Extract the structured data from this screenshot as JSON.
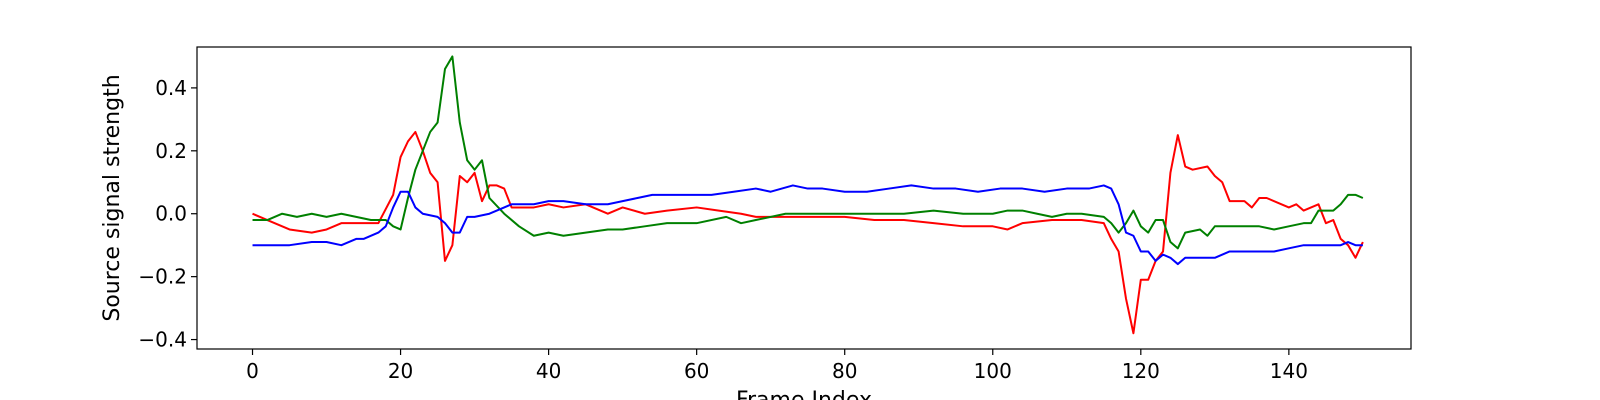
{
  "chart_data": {
    "type": "line",
    "title": "",
    "xlabel": "Frame Index",
    "ylabel": "Source signal strength",
    "xlim": [
      -7.5,
      156.5
    ],
    "ylim": [
      -0.43,
      0.53
    ],
    "xticks": [
      0,
      20,
      40,
      60,
      80,
      100,
      120,
      140
    ],
    "xtick_labels": [
      "0",
      "20",
      "40",
      "60",
      "80",
      "100",
      "120",
      "140"
    ],
    "yticks": [
      -0.4,
      -0.2,
      0.0,
      0.2,
      0.4
    ],
    "ytick_labels": [
      "−0.4",
      "−0.2",
      "0.0",
      "0.2",
      "0.4"
    ],
    "grid": false,
    "series": [
      {
        "color": "#ff0000",
        "keypoints": [
          [
            0,
            0.0
          ],
          [
            2,
            -0.02
          ],
          [
            5,
            -0.05
          ],
          [
            8,
            -0.06
          ],
          [
            10,
            -0.05
          ],
          [
            12,
            -0.03
          ],
          [
            15,
            -0.03
          ],
          [
            17,
            -0.03
          ],
          [
            19,
            0.06
          ],
          [
            20,
            0.18
          ],
          [
            21,
            0.23
          ],
          [
            22,
            0.26
          ],
          [
            23,
            0.2
          ],
          [
            24,
            0.13
          ],
          [
            25,
            0.1
          ],
          [
            26,
            -0.15
          ],
          [
            27,
            -0.1
          ],
          [
            28,
            0.12
          ],
          [
            29,
            0.1
          ],
          [
            30,
            0.13
          ],
          [
            31,
            0.04
          ],
          [
            32,
            0.09
          ],
          [
            33,
            0.09
          ],
          [
            34,
            0.08
          ],
          [
            35,
            0.02
          ],
          [
            38,
            0.02
          ],
          [
            40,
            0.03
          ],
          [
            42,
            0.02
          ],
          [
            45,
            0.03
          ],
          [
            48,
            0.0
          ],
          [
            50,
            0.02
          ],
          [
            53,
            0.0
          ],
          [
            56,
            0.01
          ],
          [
            60,
            0.02
          ],
          [
            63,
            0.01
          ],
          [
            66,
            0.0
          ],
          [
            68,
            -0.01
          ],
          [
            72,
            -0.01
          ],
          [
            76,
            -0.01
          ],
          [
            80,
            -0.01
          ],
          [
            84,
            -0.02
          ],
          [
            88,
            -0.02
          ],
          [
            92,
            -0.03
          ],
          [
            96,
            -0.04
          ],
          [
            100,
            -0.04
          ],
          [
            102,
            -0.05
          ],
          [
            104,
            -0.03
          ],
          [
            108,
            -0.02
          ],
          [
            112,
            -0.02
          ],
          [
            115,
            -0.03
          ],
          [
            116,
            -0.08
          ],
          [
            117,
            -0.12
          ],
          [
            118,
            -0.27
          ],
          [
            119,
            -0.38
          ],
          [
            120,
            -0.21
          ],
          [
            121,
            -0.21
          ],
          [
            122,
            -0.15
          ],
          [
            123,
            -0.12
          ],
          [
            124,
            0.13
          ],
          [
            125,
            0.25
          ],
          [
            126,
            0.15
          ],
          [
            127,
            0.14
          ],
          [
            129,
            0.15
          ],
          [
            130,
            0.12
          ],
          [
            131,
            0.1
          ],
          [
            132,
            0.04
          ],
          [
            134,
            0.04
          ],
          [
            135,
            0.02
          ],
          [
            136,
            0.05
          ],
          [
            137,
            0.05
          ],
          [
            139,
            0.03
          ],
          [
            140,
            0.02
          ],
          [
            141,
            0.03
          ],
          [
            142,
            0.01
          ],
          [
            143,
            0.02
          ],
          [
            144,
            0.03
          ],
          [
            145,
            -0.03
          ],
          [
            146,
            -0.02
          ],
          [
            147,
            -0.08
          ],
          [
            148,
            -0.1
          ],
          [
            149,
            -0.14
          ],
          [
            150,
            -0.09
          ]
        ]
      },
      {
        "color": "#008000",
        "keypoints": [
          [
            0,
            -0.02
          ],
          [
            2,
            -0.02
          ],
          [
            4,
            0.0
          ],
          [
            6,
            -0.01
          ],
          [
            8,
            0.0
          ],
          [
            10,
            -0.01
          ],
          [
            12,
            0.0
          ],
          [
            14,
            -0.01
          ],
          [
            16,
            -0.02
          ],
          [
            18,
            -0.02
          ],
          [
            19,
            -0.04
          ],
          [
            20,
            -0.05
          ],
          [
            21,
            0.05
          ],
          [
            22,
            0.14
          ],
          [
            23,
            0.2
          ],
          [
            24,
            0.26
          ],
          [
            25,
            0.29
          ],
          [
            26,
            0.46
          ],
          [
            27,
            0.5
          ],
          [
            28,
            0.29
          ],
          [
            29,
            0.17
          ],
          [
            30,
            0.14
          ],
          [
            31,
            0.17
          ],
          [
            32,
            0.05
          ],
          [
            34,
            0.0
          ],
          [
            36,
            -0.04
          ],
          [
            38,
            -0.07
          ],
          [
            40,
            -0.06
          ],
          [
            42,
            -0.07
          ],
          [
            45,
            -0.06
          ],
          [
            48,
            -0.05
          ],
          [
            50,
            -0.05
          ],
          [
            53,
            -0.04
          ],
          [
            56,
            -0.03
          ],
          [
            60,
            -0.03
          ],
          [
            64,
            -0.01
          ],
          [
            66,
            -0.03
          ],
          [
            68,
            -0.02
          ],
          [
            72,
            0.0
          ],
          [
            76,
            0.0
          ],
          [
            80,
            0.0
          ],
          [
            84,
            0.0
          ],
          [
            88,
            0.0
          ],
          [
            92,
            0.01
          ],
          [
            96,
            0.0
          ],
          [
            100,
            0.0
          ],
          [
            102,
            0.01
          ],
          [
            104,
            0.01
          ],
          [
            106,
            0.0
          ],
          [
            108,
            -0.01
          ],
          [
            110,
            0.0
          ],
          [
            112,
            0.0
          ],
          [
            115,
            -0.01
          ],
          [
            116,
            -0.03
          ],
          [
            117,
            -0.06
          ],
          [
            118,
            -0.03
          ],
          [
            119,
            0.01
          ],
          [
            120,
            -0.04
          ],
          [
            121,
            -0.06
          ],
          [
            122,
            -0.02
          ],
          [
            123,
            -0.02
          ],
          [
            124,
            -0.09
          ],
          [
            125,
            -0.11
          ],
          [
            126,
            -0.06
          ],
          [
            128,
            -0.05
          ],
          [
            129,
            -0.07
          ],
          [
            130,
            -0.04
          ],
          [
            132,
            -0.04
          ],
          [
            134,
            -0.04
          ],
          [
            136,
            -0.04
          ],
          [
            138,
            -0.05
          ],
          [
            140,
            -0.04
          ],
          [
            142,
            -0.03
          ],
          [
            143,
            -0.03
          ],
          [
            144,
            0.01
          ],
          [
            146,
            0.01
          ],
          [
            147,
            0.03
          ],
          [
            148,
            0.06
          ],
          [
            149,
            0.06
          ],
          [
            150,
            0.05
          ]
        ]
      },
      {
        "color": "#0000ff",
        "keypoints": [
          [
            0,
            -0.1
          ],
          [
            2,
            -0.1
          ],
          [
            5,
            -0.1
          ],
          [
            8,
            -0.09
          ],
          [
            10,
            -0.09
          ],
          [
            12,
            -0.1
          ],
          [
            14,
            -0.08
          ],
          [
            15,
            -0.08
          ],
          [
            17,
            -0.06
          ],
          [
            18,
            -0.04
          ],
          [
            19,
            0.02
          ],
          [
            20,
            0.07
          ],
          [
            21,
            0.07
          ],
          [
            22,
            0.02
          ],
          [
            23,
            0.0
          ],
          [
            25,
            -0.01
          ],
          [
            26,
            -0.03
          ],
          [
            27,
            -0.06
          ],
          [
            28,
            -0.06
          ],
          [
            29,
            -0.01
          ],
          [
            30,
            -0.01
          ],
          [
            32,
            0.0
          ],
          [
            34,
            0.02
          ],
          [
            35,
            0.03
          ],
          [
            38,
            0.03
          ],
          [
            40,
            0.04
          ],
          [
            42,
            0.04
          ],
          [
            45,
            0.03
          ],
          [
            48,
            0.03
          ],
          [
            50,
            0.04
          ],
          [
            52,
            0.05
          ],
          [
            54,
            0.06
          ],
          [
            56,
            0.06
          ],
          [
            60,
            0.06
          ],
          [
            62,
            0.06
          ],
          [
            65,
            0.07
          ],
          [
            68,
            0.08
          ],
          [
            70,
            0.07
          ],
          [
            73,
            0.09
          ],
          [
            75,
            0.08
          ],
          [
            77,
            0.08
          ],
          [
            80,
            0.07
          ],
          [
            83,
            0.07
          ],
          [
            86,
            0.08
          ],
          [
            89,
            0.09
          ],
          [
            92,
            0.08
          ],
          [
            95,
            0.08
          ],
          [
            98,
            0.07
          ],
          [
            101,
            0.08
          ],
          [
            104,
            0.08
          ],
          [
            107,
            0.07
          ],
          [
            110,
            0.08
          ],
          [
            113,
            0.08
          ],
          [
            115,
            0.09
          ],
          [
            116,
            0.08
          ],
          [
            117,
            0.03
          ],
          [
            118,
            -0.06
          ],
          [
            119,
            -0.07
          ],
          [
            120,
            -0.12
          ],
          [
            121,
            -0.12
          ],
          [
            122,
            -0.15
          ],
          [
            123,
            -0.13
          ],
          [
            124,
            -0.14
          ],
          [
            125,
            -0.16
          ],
          [
            126,
            -0.14
          ],
          [
            128,
            -0.14
          ],
          [
            130,
            -0.14
          ],
          [
            132,
            -0.12
          ],
          [
            135,
            -0.12
          ],
          [
            138,
            -0.12
          ],
          [
            140,
            -0.11
          ],
          [
            142,
            -0.1
          ],
          [
            144,
            -0.1
          ],
          [
            146,
            -0.1
          ],
          [
            147,
            -0.1
          ],
          [
            148,
            -0.09
          ],
          [
            149,
            -0.1
          ],
          [
            150,
            -0.1
          ]
        ]
      }
    ]
  }
}
